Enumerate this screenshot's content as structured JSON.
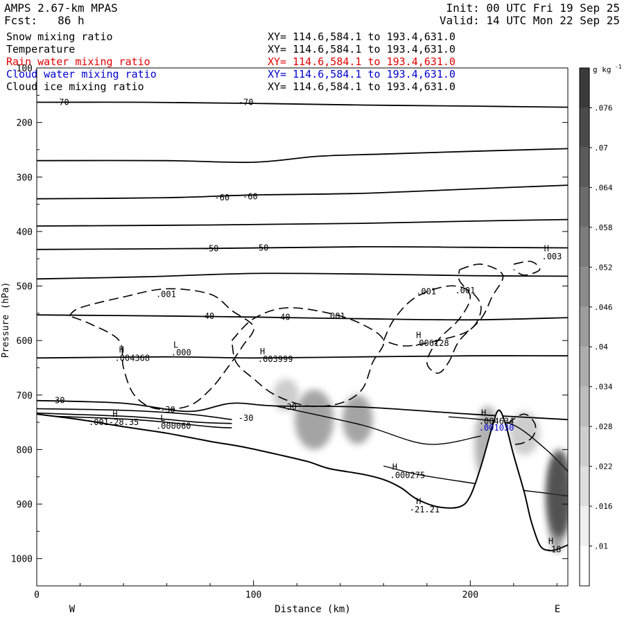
{
  "header": {
    "model": "AMPS 2.67-km MPAS",
    "fcst_label": "Fcst:",
    "fcst_value": "86 h",
    "init": "Init: 00 UTC Fri 19 Sep 25",
    "valid": "Valid: 14 UTC Mon 22 Sep 25"
  },
  "fields": [
    {
      "name": "Snow mixing ratio",
      "xy": "XY= 114.6,584.1 to 193.4,631.0",
      "color": "#000000"
    },
    {
      "name": "Temperature",
      "xy": "XY= 114.6,584.1 to 193.4,631.0",
      "color": "#000000"
    },
    {
      "name": "Rain water mixing ratio",
      "xy": "XY= 114.6,584.1 to 193.4,631.0",
      "color": "#e00000"
    },
    {
      "name": "Cloud water mixing ratio",
      "xy": "XY= 114.6,584.1 to 193.4,631.0",
      "color": "#0000cc"
    },
    {
      "name": "Cloud ice mixing ratio",
      "xy": "XY= 114.6,584.1 to 193.4,631.0",
      "color": "#000000"
    }
  ],
  "chart_data": {
    "type": "cross-section contour",
    "xlabel": "Distance (km)",
    "ylabel": "Pressure (hPa)",
    "x_ticks": [
      0,
      100,
      200
    ],
    "xlim": [
      0,
      245
    ],
    "y_ticks": [
      100,
      200,
      300,
      400,
      500,
      600,
      700,
      800,
      900,
      1000
    ],
    "ylim": [
      1050,
      100
    ],
    "y_scale": "linear-pressure-inverted",
    "side_labels": {
      "left": "W",
      "right": "E"
    },
    "colorbar": {
      "unit": "g kg",
      "unit_exp": "-1",
      "ticks": [
        ".01",
        ".016",
        ".022",
        ".028",
        ".034",
        ".04",
        ".046",
        ".052",
        ".058",
        ".064",
        ".07",
        ".076"
      ],
      "color_low": "#ffffff",
      "color_high": "#3a3a3a"
    },
    "terrain_hpa": [
      [
        0,
        735
      ],
      [
        20,
        745
      ],
      [
        40,
        758
      ],
      [
        60,
        770
      ],
      [
        80,
        785
      ],
      [
        95,
        795
      ],
      [
        110,
        808
      ],
      [
        125,
        822
      ],
      [
        135,
        835
      ],
      [
        150,
        845
      ],
      [
        160,
        855
      ],
      [
        168,
        870
      ],
      [
        175,
        890
      ],
      [
        185,
        905
      ],
      [
        195,
        905
      ],
      [
        200,
        885
      ],
      [
        205,
        830
      ],
      [
        210,
        760
      ],
      [
        213,
        728
      ],
      [
        216,
        750
      ],
      [
        220,
        810
      ],
      [
        225,
        880
      ],
      [
        228,
        930
      ],
      [
        232,
        975
      ],
      [
        236,
        985
      ],
      [
        240,
        983
      ],
      [
        245,
        975
      ]
    ],
    "isotherms": [
      {
        "label": "-70",
        "points": [
          [
            0,
            163
          ],
          [
            50,
            163
          ],
          [
            100,
            165
          ],
          [
            150,
            168
          ],
          [
            200,
            170
          ],
          [
            245,
            172
          ]
        ]
      },
      {
        "label": "",
        "points": [
          [
            0,
            270
          ],
          [
            60,
            270
          ],
          [
            100,
            273
          ],
          [
            130,
            262
          ],
          [
            160,
            258
          ],
          [
            200,
            253
          ],
          [
            245,
            248
          ]
        ]
      },
      {
        "label": "-60",
        "points": [
          [
            0,
            340
          ],
          [
            60,
            338
          ],
          [
            100,
            333
          ],
          [
            150,
            330
          ],
          [
            200,
            322
          ],
          [
            245,
            315
          ]
        ]
      },
      {
        "label": "",
        "points": [
          [
            0,
            390
          ],
          [
            80,
            388
          ],
          [
            150,
            385
          ],
          [
            200,
            381
          ],
          [
            245,
            378
          ]
        ]
      },
      {
        "label": "-50",
        "points": [
          [
            0,
            433
          ],
          [
            80,
            431
          ],
          [
            150,
            428
          ],
          [
            200,
            429
          ],
          [
            245,
            430
          ]
        ]
      },
      {
        "label": "",
        "points": [
          [
            0,
            487
          ],
          [
            50,
            483
          ],
          [
            100,
            477
          ],
          [
            150,
            478
          ],
          [
            200,
            481
          ],
          [
            245,
            482
          ]
        ]
      },
      {
        "label": "-40",
        "points": [
          [
            0,
            553
          ],
          [
            60,
            555
          ],
          [
            100,
            557
          ],
          [
            150,
            560
          ],
          [
            200,
            562
          ],
          [
            245,
            558
          ]
        ]
      },
      {
        "label": "",
        "points": [
          [
            0,
            632
          ],
          [
            60,
            630
          ],
          [
            100,
            632
          ],
          [
            150,
            630
          ],
          [
            200,
            628
          ],
          [
            245,
            628
          ]
        ]
      },
      {
        "label": "-30",
        "points": [
          [
            0,
            710
          ],
          [
            40,
            715
          ],
          [
            70,
            730
          ],
          [
            90,
            715
          ],
          [
            110,
            720
          ],
          [
            150,
            722
          ],
          [
            200,
            735
          ],
          [
            245,
            745
          ]
        ]
      }
    ],
    "annotations": [
      {
        "text": "-70",
        "x": 8,
        "y": 163
      },
      {
        "text": "-70",
        "x": 93,
        "y": 163
      },
      {
        "text": "-60",
        "x": 82,
        "y": 338
      },
      {
        "text": "-60",
        "x": 95,
        "y": 336
      },
      {
        "text": "-50",
        "x": 77,
        "y": 431
      },
      {
        "text": "-50",
        "x": 100,
        "y": 430
      },
      {
        "text": "-40",
        "x": 75,
        "y": 555
      },
      {
        "text": "-40",
        "x": 110,
        "y": 557
      },
      {
        "text": ".001",
        "x": 133,
        "y": 555
      },
      {
        "text": ".001",
        "x": 55,
        "y": 515
      },
      {
        "text": ".001",
        "x": 175,
        "y": 510
      },
      {
        "text": ".001",
        "x": 193,
        "y": 508
      },
      {
        "text": "-30",
        "x": 6,
        "y": 710
      },
      {
        "text": "-30",
        "x": 57,
        "y": 727
      },
      {
        "text": "-30",
        "x": 113,
        "y": 722
      },
      {
        "text": "-30",
        "x": 93,
        "y": 742
      },
      {
        "text": "H",
        "x": 38,
        "y": 617
      },
      {
        "text": ".004368",
        "x": 36,
        "y": 632
      },
      {
        "text": "L",
        "x": 63,
        "y": 608
      },
      {
        "text": ".000",
        "x": 62,
        "y": 622
      },
      {
        "text": "H",
        "x": 103,
        "y": 620
      },
      {
        "text": ".003999",
        "x": 102,
        "y": 634
      },
      {
        "text": "H",
        "x": 175,
        "y": 590
      },
      {
        "text": ".006128",
        "x": 174,
        "y": 605
      },
      {
        "text": "H",
        "x": 35,
        "y": 735
      },
      {
        "text": ".001-28.35",
        "x": 24,
        "y": 750
      },
      {
        "text": "L",
        "x": 57,
        "y": 742
      },
      {
        "text": ".000060",
        "x": 55,
        "y": 757
      },
      {
        "text": "H",
        "x": 164,
        "y": 832
      },
      {
        "text": ".000275",
        "x": 163,
        "y": 847
      },
      {
        "text": "H",
        "x": 175,
        "y": 895
      },
      {
        "text": "-21.21",
        "x": 172,
        "y": 910
      },
      {
        "text": "H",
        "x": 205,
        "y": 733
      },
      {
        "text": ".004634",
        "x": 204,
        "y": 748
      },
      {
        "text": ".001030",
        "x": 204,
        "y": 760,
        "color": "#0000cc"
      },
      {
        "text": "H",
        "x": 236,
        "y": 968
      },
      {
        "text": "-18",
        "x": 235,
        "y": 983
      },
      {
        "text": "H",
        "x": 234,
        "y": 431
      },
      {
        "text": ".003",
        "x": 233,
        "y": 446
      }
    ],
    "snow_contour_label": ".001",
    "shaded_cores": [
      {
        "x": 128,
        "y": 745,
        "rx": 9,
        "ry": 55,
        "value": 0.04
      },
      {
        "x": 148,
        "y": 745,
        "rx": 7,
        "ry": 45,
        "value": 0.04
      },
      {
        "x": 115,
        "y": 700,
        "rx": 6,
        "ry": 30,
        "value": 0.022
      },
      {
        "x": 208,
        "y": 790,
        "rx": 6,
        "ry": 70,
        "value": 0.034
      },
      {
        "x": 241,
        "y": 880,
        "rx": 6,
        "ry": 80,
        "value": 0.07
      },
      {
        "x": 225,
        "y": 770,
        "rx": 7,
        "ry": 40,
        "value": 0.022
      }
    ]
  }
}
